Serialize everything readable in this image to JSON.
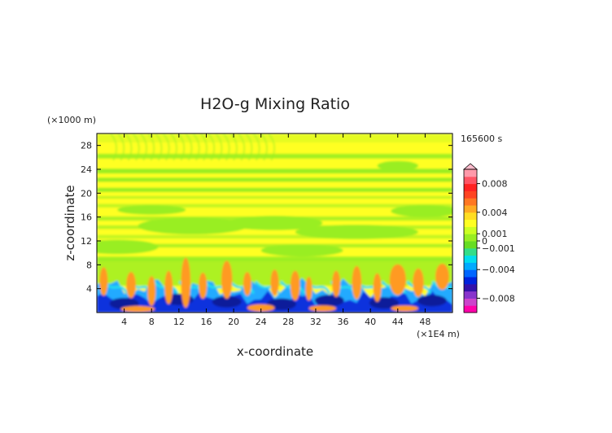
{
  "chart_data": {
    "type": "heatmap",
    "title": "H2O-g Mixing Ratio",
    "xlabel": "x-coordinate",
    "ylabel": "z-coordinate",
    "x_unit": "(×1E4 m)",
    "y_unit": "(×1000 m)",
    "time_label": "165600 s",
    "xlim": [
      0,
      52
    ],
    "ylim": [
      0,
      30
    ],
    "x_ticks": [
      4,
      8,
      12,
      16,
      20,
      24,
      28,
      32,
      36,
      40,
      44,
      48
    ],
    "x_tick_labels": [
      "4",
      "8",
      "12",
      "16",
      "20",
      "24",
      "28",
      "32",
      "36",
      "40",
      "44",
      "48"
    ],
    "y_ticks": [
      4,
      8,
      12,
      16,
      20,
      24,
      28
    ],
    "y_tick_labels": [
      "4",
      "8",
      "12",
      "16",
      "20",
      "24",
      "28"
    ],
    "colorbar": {
      "range": [
        -0.01,
        0.01
      ],
      "ticks": [
        0.008,
        0.004,
        0.001,
        0,
        -0.001,
        -0.004,
        -0.008
      ],
      "tick_labels": [
        "0.008",
        "0.004",
        "0.001",
        "0",
        "−0.001",
        "−0.004",
        "−0.008"
      ],
      "colors": [
        "#ff00aa",
        "#cc44cc",
        "#8833cc",
        "#3311aa",
        "#0022dd",
        "#0066ff",
        "#00aaff",
        "#00ddee",
        "#33dd88",
        "#66dd22",
        "#99ee22",
        "#ccff22",
        "#ffff22",
        "#ffdd22",
        "#ffaa22",
        "#ff7722",
        "#ff4422",
        "#ff2222",
        "#ff5566",
        "#ff99aa"
      ]
    },
    "regions": [
      {
        "z_range": [
          0,
          4
        ],
        "description_value": -0.004
      },
      {
        "z_range": [
          4,
          8
        ],
        "description_value": 0.001
      },
      {
        "z_range": [
          8,
          30
        ],
        "description_value": 0
      }
    ]
  }
}
